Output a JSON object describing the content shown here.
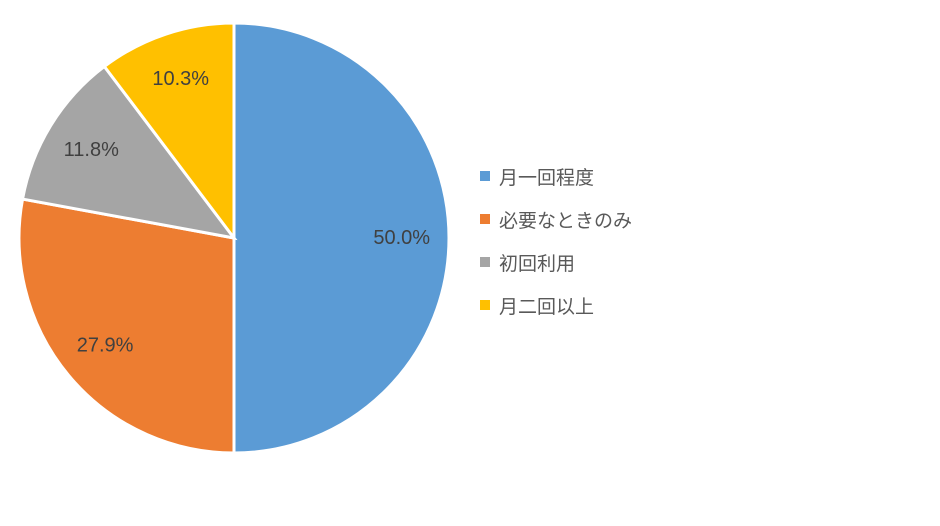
{
  "chart_data": {
    "type": "pie",
    "title": "",
    "categories": [
      "月一回程度",
      "必要なときのみ",
      "初回利用",
      "月二回以上"
    ],
    "values": [
      50.0,
      27.9,
      11.8,
      10.3
    ],
    "data_labels": [
      "50.0%",
      "27.9%",
      "11.8%",
      "10.3%"
    ],
    "colors": [
      "#5B9BD5",
      "#ED7D31",
      "#A5A5A5",
      "#FFC000"
    ],
    "start_angle_deg": 0,
    "direction": "clockwise",
    "legend_position": "right",
    "slice_border_color": "#FFFFFF",
    "label_color": "#404040",
    "background_color": "#FFFFFF"
  },
  "legend": {
    "text_color": "#595959",
    "items": [
      {
        "label": "月一回程度",
        "color": "#5B9BD5"
      },
      {
        "label": "必要なときのみ",
        "color": "#ED7D31"
      },
      {
        "label": "初回利用",
        "color": "#A5A5A5"
      },
      {
        "label": "月二回以上",
        "color": "#FFC000"
      }
    ]
  }
}
